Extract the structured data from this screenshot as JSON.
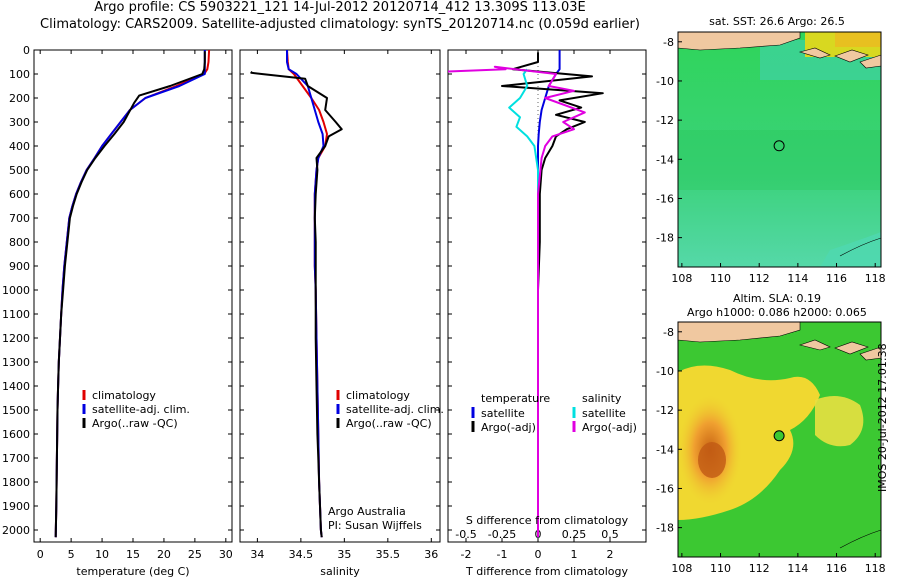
{
  "header": {
    "line1": "Argo profile: CS 5903221_121 14-Jul-2012 20120714_412 13.309S 113.03E",
    "line2": "Climatology: CARS2009. Satellite-adjusted climatology: synTS_20120714.nc (0.059d earlier)"
  },
  "stamp": "IMOS 20-Jul-2012 17:01:38",
  "colors": {
    "climatology": "#e00000",
    "satellite": "#0000e0",
    "argo": "#000000",
    "sat_s": "#00e0e0",
    "argo_s": "#e000e0"
  },
  "chart_data": [
    {
      "type": "line",
      "id": "temperature",
      "xlabel": "temperature (deg C)",
      "ylabel": "",
      "xlim": [
        -1,
        31
      ],
      "ylim": [
        2050,
        0
      ],
      "xticks": [
        0,
        5,
        10,
        15,
        20,
        25,
        30
      ],
      "xtick_labels": [
        "0",
        "5",
        "10",
        "15",
        "20",
        "25",
        "30"
      ],
      "yticks": [
        0,
        100,
        200,
        300,
        400,
        500,
        600,
        700,
        800,
        900,
        1000,
        1100,
        1200,
        1300,
        1400,
        1500,
        1600,
        1700,
        1800,
        1900,
        2000
      ],
      "ytick_labels": [
        "0",
        "100",
        "200",
        "300",
        "400",
        "500",
        "600",
        "700",
        "800",
        "900",
        "1000",
        "1100",
        "1200",
        "1300",
        "1400",
        "1500",
        "1600",
        "1700",
        "1800",
        "1900",
        "2000"
      ],
      "legend": [
        "climatology",
        "satellite-adj. clim.",
        "Argo(..raw -QC)"
      ],
      "legend_position": "lower-center",
      "series": [
        {
          "name": "climatology",
          "color": "#e00000",
          "x": [
            27.3,
            27.2,
            27.0,
            26.5,
            22.0,
            17.0,
            14.5,
            13.0,
            11.5,
            10.0,
            8.8,
            7.5,
            6.6,
            5.8,
            5.2,
            4.7,
            4.3,
            3.9,
            3.6,
            3.4,
            3.2,
            3.0,
            2.9,
            2.8,
            2.7,
            2.6,
            2.5
          ],
          "y": [
            0,
            50,
            80,
            100,
            150,
            200,
            250,
            300,
            350,
            400,
            450,
            500,
            550,
            600,
            650,
            700,
            800,
            900,
            1000,
            1100,
            1200,
            1300,
            1400,
            1500,
            1700,
            1900,
            2030
          ]
        },
        {
          "name": "satellite-adj. clim.",
          "color": "#0000e0",
          "x": [
            26.6,
            26.6,
            26.6,
            26.6,
            22.5,
            17.0,
            14.5,
            13.0,
            11.5,
            10.0,
            8.8,
            7.5,
            6.6,
            5.8,
            5.2,
            4.7,
            4.3,
            3.9,
            3.6,
            3.4,
            3.2,
            3.0,
            2.9,
            2.8,
            2.7,
            2.6,
            2.5
          ],
          "y": [
            0,
            50,
            80,
            100,
            150,
            200,
            250,
            300,
            350,
            400,
            450,
            500,
            550,
            600,
            650,
            700,
            800,
            900,
            1000,
            1100,
            1200,
            1300,
            1400,
            1500,
            1700,
            1900,
            2030
          ]
        },
        {
          "name": "Argo(..raw -QC)",
          "color": "#000000",
          "x": [
            26.6,
            26.6,
            26.5,
            26.2,
            21.0,
            16.0,
            15.2,
            13.5,
            12.0,
            10.4,
            8.9,
            7.6,
            6.7,
            5.9,
            5.3,
            4.8,
            4.4,
            4.0,
            3.7,
            3.4,
            3.2,
            3.0,
            2.9,
            2.8,
            2.7,
            2.6,
            2.5
          ],
          "y": [
            5,
            50,
            80,
            100,
            150,
            190,
            220,
            300,
            350,
            400,
            450,
            500,
            550,
            600,
            650,
            700,
            800,
            900,
            1000,
            1100,
            1200,
            1300,
            1400,
            1500,
            1700,
            1900,
            2030
          ]
        }
      ]
    },
    {
      "type": "line",
      "id": "salinity",
      "xlabel": "salinity",
      "ylabel": "",
      "xlim": [
        33.8,
        36.1
      ],
      "ylim": [
        2050,
        0
      ],
      "xticks": [
        34,
        34.5,
        35,
        35.5,
        36
      ],
      "xtick_labels": [
        "34",
        "34.5",
        "35",
        "35.5",
        "36"
      ],
      "legend": [
        "climatology",
        "satellite-adj. clim.",
        "Argo(..raw -QC)"
      ],
      "legend_position": "lower-center",
      "annotation": [
        "Argo Australia",
        "PI: Susan Wijffels"
      ],
      "series": [
        {
          "name": "climatology",
          "color": "#e00000",
          "x": [
            34.34,
            34.35,
            34.36,
            34.42,
            34.52,
            34.62,
            34.71,
            34.76,
            34.8,
            34.78,
            34.7,
            34.68,
            34.66,
            34.66,
            34.66,
            34.66,
            34.67,
            34.68,
            34.69,
            34.7,
            34.71,
            34.72,
            34.73,
            34.74
          ],
          "y": [
            0,
            50,
            80,
            100,
            150,
            200,
            250,
            300,
            350,
            400,
            450,
            500,
            600,
            700,
            800,
            900,
            1000,
            1200,
            1400,
            1600,
            1800,
            1900,
            2000,
            2030
          ]
        },
        {
          "name": "satellite-adj. clim.",
          "color": "#0000e0",
          "x": [
            34.34,
            34.34,
            34.36,
            34.45,
            34.58,
            34.62,
            34.66,
            34.7,
            34.75,
            34.76,
            34.7,
            34.68,
            34.66,
            34.66,
            34.66,
            34.66,
            34.67,
            34.68,
            34.69,
            34.7,
            34.71,
            34.72,
            34.73,
            34.74
          ],
          "y": [
            0,
            50,
            80,
            100,
            150,
            200,
            250,
            300,
            350,
            400,
            450,
            500,
            600,
            700,
            800,
            900,
            1000,
            1200,
            1400,
            1600,
            1800,
            1900,
            2000,
            2030
          ]
        },
        {
          "name": "Argo(..raw -QC)",
          "color": "#000000",
          "x": [
            33.94,
            33.93,
            34.05,
            34.3,
            34.55,
            34.58,
            34.8,
            34.78,
            34.9,
            34.97,
            34.82,
            34.78,
            34.68,
            34.69,
            34.67,
            34.66,
            34.67,
            34.67,
            34.67,
            34.68,
            34.69,
            34.7,
            34.71,
            34.72,
            34.73,
            34.74
          ],
          "y": [
            90,
            95,
            100,
            110,
            120,
            150,
            200,
            250,
            300,
            330,
            360,
            400,
            450,
            500,
            600,
            700,
            800,
            1000,
            1200,
            1400,
            1600,
            1700,
            1800,
            1900,
            2000,
            2030
          ]
        }
      ]
    },
    {
      "type": "line",
      "id": "difference",
      "xlabel": "T difference from climatology",
      "xlabel_top": "S difference from climatology",
      "xlim": [
        -2.5,
        3
      ],
      "ylim": [
        2050,
        0
      ],
      "xticks": [
        -2,
        -1,
        0,
        1,
        2
      ],
      "xtick_labels": [
        "-2",
        "-1",
        "0",
        "1",
        "2"
      ],
      "s_xticks": [
        -2,
        -1,
        0,
        1,
        2
      ],
      "s_xtick_labels": [
        "-0.5",
        "-0.25",
        "0",
        "0.25",
        "0.5"
      ],
      "legend_headers": [
        "temperature",
        "salinity"
      ],
      "legend": [
        "satellite",
        "Argo(-adj)",
        "satellite",
        "Argo(-adj)"
      ],
      "legend_position": "lower-center",
      "series": [
        {
          "name": "satellite",
          "color": "#0000e0",
          "x": [
            0.6,
            0.6,
            0.6,
            0.5,
            0.3,
            0.2,
            0.1,
            0.05,
            0.02,
            0,
            0,
            0,
            0,
            0,
            0,
            0
          ],
          "y": [
            0,
            50,
            80,
            100,
            150,
            200,
            250,
            300,
            350,
            400,
            500,
            700,
            1000,
            1400,
            1800,
            2030
          ]
        },
        {
          "name": "Argo(-adj)",
          "color": "#000000",
          "x": [
            0.0,
            0.0,
            -0.7,
            1.5,
            -1.0,
            1.8,
            0.6,
            1.2,
            0.5,
            1.3,
            0.8,
            0.5,
            0.4,
            0.2,
            0.1,
            0.05,
            0.05,
            0,
            0,
            0
          ],
          "y": [
            10,
            50,
            80,
            110,
            150,
            180,
            210,
            240,
            270,
            300,
            330,
            360,
            400,
            450,
            500,
            600,
            800,
            1000,
            1500,
            2030
          ]
        },
        {
          "name": "satellite",
          "color": "#00e0e0",
          "x": [
            -0.3,
            -0.4,
            -0.3,
            -0.5,
            -0.8,
            -0.5,
            -0.6,
            -0.3,
            -0.1,
            0,
            0,
            0,
            0,
            0
          ],
          "y": [
            80,
            100,
            150,
            200,
            240,
            280,
            320,
            360,
            400,
            500,
            700,
            1000,
            1500,
            2030
          ]
        },
        {
          "name": "Argo(-adj)",
          "color": "#e000e0",
          "x": [
            -2.6,
            -0.9,
            -1.2,
            0.5,
            0.3,
            1.0,
            0.2,
            1.3,
            0.7,
            1.0,
            0.4,
            0.2,
            0.1,
            0,
            0,
            0
          ],
          "y": [
            90,
            80,
            70,
            100,
            150,
            170,
            200,
            260,
            300,
            330,
            360,
            400,
            450,
            600,
            1000,
            2030
          ]
        }
      ]
    },
    {
      "type": "heatmap",
      "id": "sst_map",
      "title": "sat. SST: 26.6 Argo: 26.5",
      "xlim": [
        107.8,
        118.3
      ],
      "ylim": [
        -19.5,
        -7.5
      ],
      "xticks": [
        108,
        110,
        112,
        114,
        116,
        118
      ],
      "xtick_labels": [
        "108",
        "110",
        "112",
        "114",
        "116",
        "118"
      ],
      "yticks": [
        -8,
        -10,
        -12,
        -14,
        -16,
        -18
      ],
      "ytick_labels": [
        "-8",
        "-10",
        "-12",
        "-14",
        "-16",
        "-18"
      ],
      "marker": {
        "lon": 113.03,
        "lat": -13.309
      }
    },
    {
      "type": "heatmap",
      "id": "sla_map",
      "title": "Altim. SLA: 0.19",
      "subtitle": "Argo h1000: 0.086 h2000: 0.065",
      "xlim": [
        107.8,
        118.3
      ],
      "ylim": [
        -19.5,
        -7.5
      ],
      "xticks": [
        108,
        110,
        112,
        114,
        116,
        118
      ],
      "xtick_labels": [
        "108",
        "110",
        "112",
        "114",
        "116",
        "118"
      ],
      "yticks": [
        -8,
        -10,
        -12,
        -14,
        -16,
        -18
      ],
      "ytick_labels": [
        "-8",
        "-10",
        "-12",
        "-14",
        "-16",
        "-18"
      ],
      "marker": {
        "lon": 113.03,
        "lat": -13.309
      }
    }
  ]
}
